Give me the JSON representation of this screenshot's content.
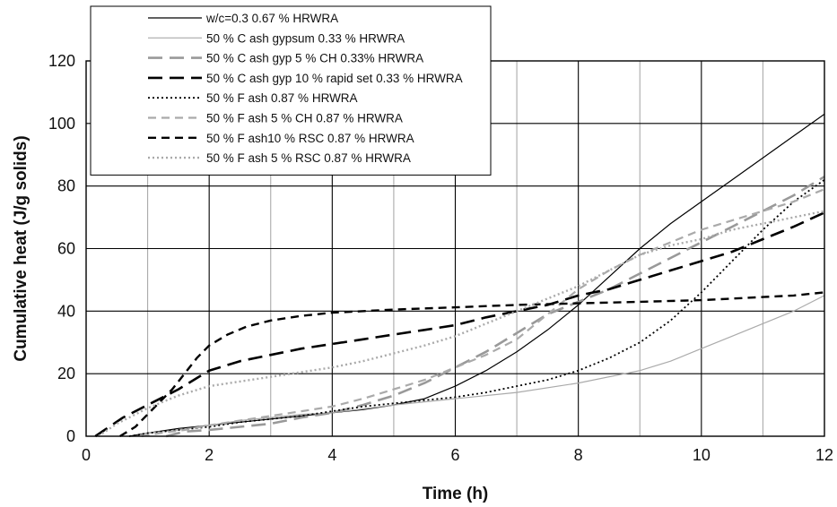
{
  "chart_data": {
    "type": "line",
    "title": "",
    "xlabel": "Time (h)",
    "ylabel": "Cumulative heat (J/g solids)",
    "xlim": [
      0,
      12
    ],
    "ylim": [
      0,
      120
    ],
    "x_ticks": [
      "0",
      "2",
      "4",
      "6",
      "8",
      "10",
      "12"
    ],
    "y_ticks": [
      "0",
      "20",
      "40",
      "60",
      "80",
      "100",
      "120"
    ],
    "grid": {
      "major_vertical_every": 2,
      "minor_vertical_every": 1,
      "horizontal_every": 20,
      "major_color": "#000000",
      "minor_color": "#aaaaaa"
    },
    "legend_position": "top-left",
    "series": [
      {
        "name": "w/c=0.3 0.67 % HRWRA",
        "color": "#000000",
        "dash": "solid",
        "width": 1.2,
        "points": [
          [
            0.7,
            0
          ],
          [
            1,
            1
          ],
          [
            1.5,
            2.5
          ],
          [
            2,
            3.5
          ],
          [
            2.5,
            4.5
          ],
          [
            3,
            5.5
          ],
          [
            3.5,
            6.5
          ],
          [
            4,
            7.5
          ],
          [
            4.5,
            8.5
          ],
          [
            5,
            10
          ],
          [
            5.5,
            12
          ],
          [
            6,
            16
          ],
          [
            6.5,
            21
          ],
          [
            7,
            27
          ],
          [
            7.5,
            34
          ],
          [
            8,
            42
          ],
          [
            8.5,
            51
          ],
          [
            9,
            60
          ],
          [
            9.5,
            68
          ],
          [
            10,
            75
          ],
          [
            10.5,
            82
          ],
          [
            11,
            89
          ],
          [
            11.5,
            96
          ],
          [
            12,
            103
          ]
        ]
      },
      {
        "name": "50 % C ash gypsum 0.33 % HRWRA",
        "color": "#aaaaaa",
        "dash": "solid",
        "width": 1.2,
        "points": [
          [
            0.8,
            0
          ],
          [
            1,
            1
          ],
          [
            1.5,
            2
          ],
          [
            2,
            3.5
          ],
          [
            2.5,
            5
          ],
          [
            3,
            6
          ],
          [
            3.5,
            7
          ],
          [
            4,
            7.5
          ],
          [
            5,
            10
          ],
          [
            6,
            12
          ],
          [
            7,
            14
          ],
          [
            8,
            17
          ],
          [
            9,
            21
          ],
          [
            9.5,
            24
          ],
          [
            10,
            28
          ],
          [
            10.5,
            32
          ],
          [
            11,
            36
          ],
          [
            11.5,
            40
          ],
          [
            12,
            45
          ]
        ]
      },
      {
        "name": "50 % C ash gyp 5 % CH 0.33% HRWRA",
        "color": "#999999",
        "dash": "long",
        "width": 2.6,
        "points": [
          [
            1.3,
            0
          ],
          [
            1.6,
            1.5
          ],
          [
            2,
            2
          ],
          [
            2.5,
            3
          ],
          [
            3,
            4
          ],
          [
            3.5,
            6
          ],
          [
            4,
            7.5
          ],
          [
            4.5,
            10
          ],
          [
            5,
            13
          ],
          [
            5.5,
            17
          ],
          [
            6,
            22
          ],
          [
            6.5,
            27
          ],
          [
            7,
            33
          ],
          [
            7.5,
            39
          ],
          [
            8,
            43
          ],
          [
            8.5,
            47
          ],
          [
            9,
            52
          ],
          [
            9.5,
            57
          ],
          [
            10,
            62
          ],
          [
            10.5,
            67
          ],
          [
            11,
            72
          ],
          [
            11.5,
            77
          ],
          [
            12,
            83
          ]
        ]
      },
      {
        "name": "50 % C ash gyp 10 % rapid set 0.33 % HRWRA",
        "color": "#000000",
        "dash": "long",
        "width": 2.6,
        "points": [
          [
            0.15,
            0
          ],
          [
            0.3,
            2
          ],
          [
            0.6,
            6
          ],
          [
            1,
            10
          ],
          [
            1.5,
            15
          ],
          [
            2,
            21
          ],
          [
            2.5,
            24
          ],
          [
            3,
            26
          ],
          [
            3.5,
            28
          ],
          [
            4,
            29.5
          ],
          [
            4.5,
            31
          ],
          [
            5,
            32.5
          ],
          [
            5.5,
            34
          ],
          [
            6,
            35.5
          ],
          [
            6.5,
            38
          ],
          [
            7,
            40
          ],
          [
            7.5,
            42
          ],
          [
            8,
            45
          ],
          [
            8.5,
            47
          ],
          [
            9,
            50
          ],
          [
            9.5,
            53
          ],
          [
            10,
            56
          ],
          [
            10.5,
            59
          ],
          [
            11,
            63
          ],
          [
            11.5,
            67
          ],
          [
            12,
            71.5
          ]
        ]
      },
      {
        "name": "50 % F ash 0.87 % HRWRA",
        "color": "#000000",
        "dash": "dotted",
        "width": 1.8,
        "points": [
          [
            0.7,
            0
          ],
          [
            1,
            1
          ],
          [
            1.5,
            2
          ],
          [
            2,
            3
          ],
          [
            2.5,
            4.5
          ],
          [
            3,
            5.5
          ],
          [
            3.5,
            6.5
          ],
          [
            4,
            8
          ],
          [
            4.5,
            9.5
          ],
          [
            5,
            10.5
          ],
          [
            5.5,
            11.5
          ],
          [
            6,
            12.5
          ],
          [
            6.5,
            14
          ],
          [
            7,
            16
          ],
          [
            7.5,
            18
          ],
          [
            8,
            21
          ],
          [
            8.5,
            25
          ],
          [
            9,
            30
          ],
          [
            9.5,
            37
          ],
          [
            10,
            46
          ],
          [
            10.5,
            56
          ],
          [
            11,
            66
          ],
          [
            11.5,
            75
          ],
          [
            12,
            82
          ]
        ]
      },
      {
        "name": "50 % F ash 5 % CH 0.87 % HRWRA",
        "color": "#aaaaaa",
        "dash": "medium",
        "width": 2.2,
        "points": [
          [
            0.9,
            0
          ],
          [
            1.2,
            1
          ],
          [
            1.6,
            2
          ],
          [
            2,
            3.5
          ],
          [
            2.5,
            5
          ],
          [
            3,
            6.5
          ],
          [
            3.5,
            8
          ],
          [
            4,
            9.5
          ],
          [
            4.5,
            12
          ],
          [
            5,
            15
          ],
          [
            5.5,
            18
          ],
          [
            6,
            22
          ],
          [
            6.5,
            26
          ],
          [
            7,
            31
          ],
          [
            7.5,
            39
          ],
          [
            8,
            47
          ],
          [
            8.5,
            53
          ],
          [
            9,
            58
          ],
          [
            9.5,
            62
          ],
          [
            10,
            66
          ],
          [
            10.5,
            69
          ],
          [
            11,
            72
          ],
          [
            11.5,
            75
          ],
          [
            12,
            79
          ]
        ]
      },
      {
        "name": "50 % F ash10 % RSC 0.87 % HRWRA",
        "color": "#000000",
        "dash": "medium",
        "width": 2.4,
        "points": [
          [
            0.55,
            0
          ],
          [
            0.8,
            3
          ],
          [
            1.1,
            9
          ],
          [
            1.4,
            15
          ],
          [
            1.6,
            20
          ],
          [
            1.8,
            25
          ],
          [
            2,
            29
          ],
          [
            2.3,
            32.5
          ],
          [
            2.6,
            35
          ],
          [
            3,
            37
          ],
          [
            3.5,
            38.5
          ],
          [
            4,
            39.5
          ],
          [
            5,
            40.5
          ],
          [
            6,
            41.2
          ],
          [
            7,
            42
          ],
          [
            8,
            42.5
          ],
          [
            9,
            43
          ],
          [
            10,
            43.5
          ],
          [
            11,
            44.5
          ],
          [
            11.5,
            45
          ],
          [
            12,
            46
          ]
        ]
      },
      {
        "name": "50 % F ash 5 % RSC 0.87 % HRWRA",
        "color": "#aaaaaa",
        "dash": "dotted",
        "width": 2.4,
        "points": [
          [
            0.2,
            0
          ],
          [
            0.5,
            4
          ],
          [
            1,
            9
          ],
          [
            1.5,
            13
          ],
          [
            2,
            16
          ],
          [
            2.5,
            17.5
          ],
          [
            3,
            19
          ],
          [
            3.5,
            20.5
          ],
          [
            4,
            22
          ],
          [
            4.5,
            24
          ],
          [
            5,
            26.5
          ],
          [
            5.5,
            29
          ],
          [
            6,
            32
          ],
          [
            6.5,
            36
          ],
          [
            7,
            40
          ],
          [
            7.5,
            44
          ],
          [
            8,
            48
          ],
          [
            8.5,
            53
          ],
          [
            9,
            58
          ],
          [
            9.5,
            61
          ],
          [
            10,
            63
          ],
          [
            10.5,
            66
          ],
          [
            11,
            68
          ],
          [
            11.5,
            70
          ],
          [
            12,
            72
          ]
        ]
      }
    ]
  }
}
